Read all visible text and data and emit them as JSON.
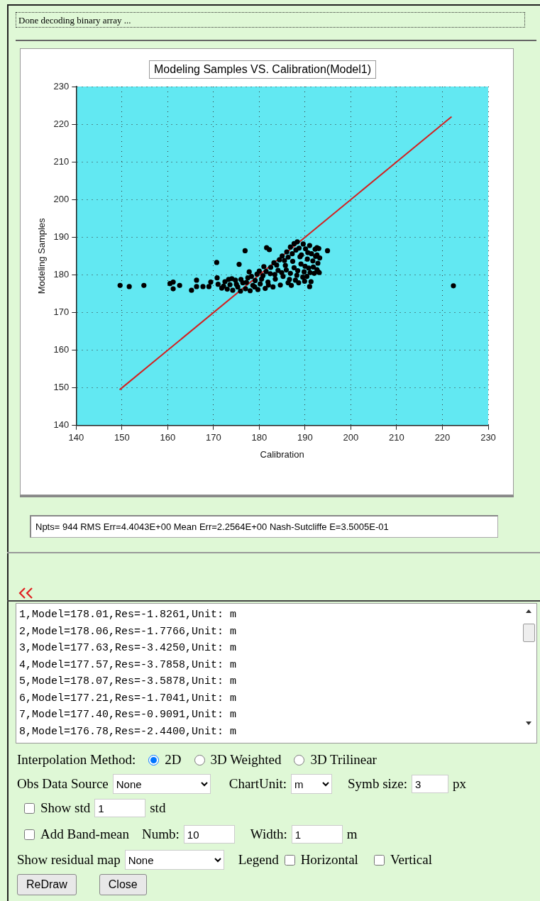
{
  "chart_data": {
    "type": "scatter",
    "title": "Modeling Samples VS. Calibration(Model1)",
    "xlabel": "Calibration",
    "ylabel": "Modeling Samples",
    "xlim": [
      140,
      230
    ],
    "ylim": [
      140,
      230
    ],
    "xticks": [
      140,
      150,
      160,
      170,
      180,
      190,
      200,
      210,
      220,
      230
    ],
    "yticks": [
      140,
      150,
      160,
      170,
      180,
      190,
      200,
      210,
      220,
      230
    ],
    "grid": true,
    "marker": "circle",
    "series": [
      {
        "type": "scatter",
        "color": "#000000",
        "x": [
          149.6,
          151.6,
          154.8,
          222.4,
          160.5,
          161.2,
          161.2,
          162.6,
          165.2,
          166.3,
          166.3,
          167.7,
          169.0,
          169.4,
          170.7,
          175.6,
          176.9,
          170.8,
          181.6,
          182.2,
          194.9,
          192.6,
          192.8,
          193.1,
          191.0,
          192.6,
          171,
          171.8,
          172.5,
          173,
          173.6,
          174.2,
          174.8,
          175.3,
          175.9,
          176.4,
          177,
          177.5,
          178,
          178.6,
          179.1,
          179.7,
          180.2,
          180.8,
          181.3,
          181.9,
          182.4,
          183,
          183.5,
          184.1,
          184.6,
          185.2,
          185.7,
          186.3,
          186.8,
          187.3,
          187.9,
          188.4,
          188.9,
          189.5,
          190,
          190.6,
          191.1,
          191.7,
          192.2,
          192.8,
          193.2,
          193.0,
          182.5,
          183.2,
          183.8,
          184.4,
          185,
          185.5,
          186,
          186.3,
          186.8,
          187.2,
          187.6,
          188,
          188.3,
          188.7,
          189.2,
          189.6,
          190.1,
          190.5,
          191,
          191.4,
          191.8,
          192.3,
          192.6,
          176,
          177.2,
          178.3,
          179.5,
          180.5,
          181.5,
          182,
          183.4,
          184.9,
          185.9,
          186.6,
          187.6,
          188.2,
          189.1,
          189.8,
          190.4,
          191.3,
          190.8,
          192,
          187.0,
          188.6,
          189.9,
          175,
          174,
          173.3,
          172.2,
          179,
          180,
          181,
          177.8
        ],
        "values": [
          177.2,
          176.9,
          177.2,
          177.1,
          177.7,
          178.1,
          176.3,
          177.2,
          175.9,
          178.6,
          176.9,
          176.9,
          176.9,
          178.1,
          183.3,
          182.8,
          186.4,
          179.2,
          187.2,
          186.7,
          186.4,
          187.2,
          183.1,
          180.6,
          176.9,
          185.3,
          177.5,
          176.5,
          178.2,
          176.2,
          177.4,
          175.9,
          178.6,
          176.8,
          175.7,
          177.9,
          176.3,
          179.2,
          175.8,
          177.2,
          178.5,
          176.1,
          177.6,
          179.8,
          176.4,
          178.1,
          180.3,
          176.8,
          178.9,
          181.2,
          177.3,
          179.6,
          182.5,
          177.9,
          180.4,
          183.6,
          178.6,
          181.1,
          184.8,
          179.4,
          182.3,
          185.9,
          180.6,
          183.7,
          186.8,
          180.9,
          184.5,
          187.0,
          182.0,
          183.2,
          182.6,
          184.0,
          185.0,
          183.8,
          186.1,
          184.7,
          187.4,
          185.6,
          188.3,
          186.6,
          188.8,
          187.1,
          185.3,
          188.2,
          186.9,
          184.2,
          187.8,
          185.6,
          182.1,
          184.9,
          181.4,
          178.8,
          178.0,
          179.6,
          180.2,
          178.9,
          180.9,
          177.3,
          180.1,
          180.6,
          181.3,
          178.8,
          181.9,
          179.9,
          182.9,
          180.8,
          179.6,
          178.2,
          181.8,
          180.4,
          177.2,
          177.9,
          178.3,
          177.5,
          179.0,
          178.8,
          177.0,
          176.8,
          181.0,
          182.2,
          180.8
        ]
      },
      {
        "type": "line",
        "color": "#d42020",
        "marker": "none",
        "x": [
          149.5,
          222
        ],
        "values": [
          149.5,
          222
        ]
      }
    ],
    "annotations": [
      "Done decoding binary array ...",
      "Npts= 944 RMS Err=4.4043E+00  Mean Err=2.2564E+00  Nash-Sutcliffe E=3.5005E-01",
      "1,Model=178.01,Res=-1.8261,Unit: m",
      "2,Model=178.06,Res=-1.7766,Unit: m",
      "3,Model=177.63,Res=-3.4250,Unit: m",
      "4,Model=177.57,Res=-3.7858,Unit: m",
      "5,Model=178.07,Res=-3.5878,Unit: m",
      "6,Model=177.21,Res=-1.7041,Unit: m",
      "7,Model=177.40,Res=-0.9091,Unit: m",
      "8,Model=176.78,Res=-2.4400,Unit: m",
      "Interpolation Method:",
      "2D",
      "3D Weighted",
      "3D Trilinear",
      "Obs Data Source",
      "None",
      "ChartUnit:",
      "m",
      "Symb size:",
      "3",
      "px",
      "Show std",
      "1",
      "std",
      "Add Band-mean",
      "Numb:",
      "10",
      "Width:",
      "1",
      "m",
      "Show residual map",
      "None",
      "Legend",
      "Horizontal",
      "Vertical",
      "ReDraw",
      "Close"
    ]
  }
}
